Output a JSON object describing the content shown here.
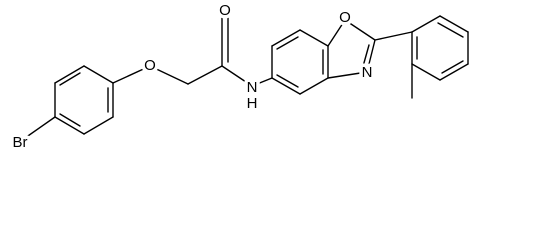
{
  "atoms": [
    {
      "label": "Br"
    },
    {
      "label": "O"
    },
    {
      "label": "O"
    },
    {
      "label": "N"
    },
    {
      "label": "H"
    },
    {
      "label": "O"
    },
    {
      "label": "N"
    }
  ]
}
